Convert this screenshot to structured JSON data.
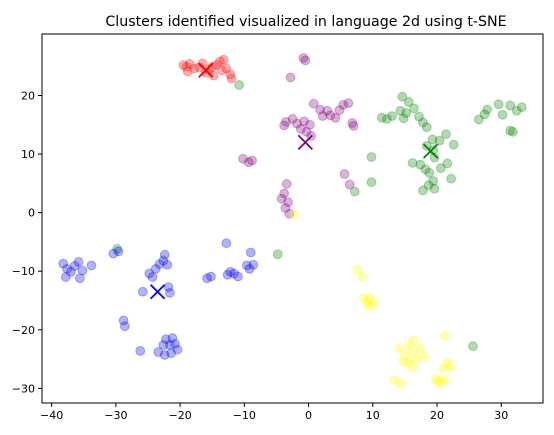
{
  "chart_data": {
    "type": "scatter",
    "title": "Clusters identified visualized in language 2d using t-SNE",
    "xlabel": "",
    "ylabel": "",
    "xlim": [
      -41.5,
      36.5
    ],
    "ylim": [
      -32.5,
      30.5
    ],
    "xticks": [
      -40,
      -30,
      -20,
      -10,
      0,
      10,
      20,
      30
    ],
    "yticks": [
      -30,
      -20,
      -10,
      0,
      10,
      20
    ],
    "grid": false,
    "legend": "none",
    "point_alpha": 0.3,
    "series": [
      {
        "color": "#ff0000",
        "points": [
          [
            -19.5,
            25.2
          ],
          [
            -18.5,
            25.4
          ],
          [
            -17.8,
            24.6
          ],
          [
            -17.0,
            24.8
          ],
          [
            -16.5,
            25.5
          ],
          [
            -15.5,
            24.4
          ],
          [
            -15.0,
            24.9
          ],
          [
            -14.3,
            25.2
          ],
          [
            -13.8,
            25.8
          ],
          [
            -13.2,
            26.1
          ],
          [
            -12.8,
            24.6
          ],
          [
            -12.2,
            23.6
          ],
          [
            -12.0,
            22.9
          ],
          [
            -18.8,
            24.1
          ],
          [
            -16.0,
            23.9
          ],
          [
            -14.8,
            23.4
          ],
          [
            -13.5,
            24.3
          ],
          [
            -19.0,
            24.9
          ]
        ],
        "centroid": [
          -16.0,
          24.3
        ]
      },
      {
        "color": "#800080",
        "points": [
          [
            -0.8,
            26.4
          ],
          [
            -2.8,
            23.1
          ],
          [
            -3.5,
            15.5
          ],
          [
            -2.5,
            16.0
          ],
          [
            -1.8,
            15.2
          ],
          [
            -0.7,
            15.6
          ],
          [
            0.2,
            15.0
          ],
          [
            0.8,
            18.6
          ],
          [
            1.8,
            17.6
          ],
          [
            2.2,
            16.5
          ],
          [
            2.9,
            17.4
          ],
          [
            3.4,
            16.6
          ],
          [
            4.2,
            16.2
          ],
          [
            4.8,
            17.5
          ],
          [
            5.4,
            18.4
          ],
          [
            6.2,
            18.7
          ],
          [
            6.8,
            15.3
          ],
          [
            7.0,
            14.8
          ],
          [
            -3.8,
            14.9
          ],
          [
            -1.2,
            14.3
          ],
          [
            -0.3,
            13.8
          ],
          [
            0.4,
            13.1
          ],
          [
            -10.2,
            9.2
          ],
          [
            -9.3,
            8.6
          ],
          [
            -8.8,
            8.9
          ],
          [
            -3.4,
            4.9
          ],
          [
            -3.8,
            3.3
          ],
          [
            -4.2,
            2.4
          ],
          [
            -3.2,
            1.8
          ],
          [
            -3.6,
            0.8
          ],
          [
            -3.0,
            -0.2
          ],
          [
            5.6,
            6.6
          ],
          [
            6.4,
            4.8
          ],
          [
            -0.5,
            26.0
          ]
        ],
        "centroid": [
          -0.5,
          12.0
        ]
      },
      {
        "color": "#008000",
        "points": [
          [
            -10.8,
            21.8
          ],
          [
            11.4,
            16.2
          ],
          [
            12.2,
            16.0
          ],
          [
            13.0,
            16.5
          ],
          [
            14.3,
            17.4
          ],
          [
            14.8,
            16.1
          ],
          [
            15.2,
            17.0
          ],
          [
            14.6,
            19.8
          ],
          [
            15.6,
            18.9
          ],
          [
            16.4,
            17.8
          ],
          [
            17.2,
            16.4
          ],
          [
            17.8,
            15.4
          ],
          [
            18.4,
            14.6
          ],
          [
            19.3,
            12.5
          ],
          [
            20.4,
            12.3
          ],
          [
            21.4,
            13.4
          ],
          [
            22.6,
            11.6
          ],
          [
            18.4,
            11.4
          ],
          [
            19.4,
            10.7
          ],
          [
            19.6,
            9.4
          ],
          [
            16.2,
            8.5
          ],
          [
            17.4,
            8.2
          ],
          [
            18.2,
            7.4
          ],
          [
            18.8,
            6.8
          ],
          [
            20.6,
            7.6
          ],
          [
            21.6,
            8.4
          ],
          [
            19.4,
            5.4
          ],
          [
            18.7,
            4.7
          ],
          [
            17.8,
            3.8
          ],
          [
            19.6,
            4.1
          ],
          [
            22.2,
            5.8
          ],
          [
            9.8,
            9.5
          ],
          [
            9.8,
            5.2
          ],
          [
            7.2,
            3.6
          ],
          [
            26.5,
            15.9
          ],
          [
            27.4,
            16.8
          ],
          [
            27.8,
            17.6
          ],
          [
            29.6,
            18.5
          ],
          [
            31.4,
            18.3
          ],
          [
            32.4,
            17.4
          ],
          [
            33.2,
            18.0
          ],
          [
            30.2,
            16.7
          ],
          [
            31.4,
            14.0
          ],
          [
            31.8,
            13.8
          ],
          [
            -4.8,
            -7.1
          ],
          [
            -29.8,
            -6.2
          ],
          [
            25.6,
            -22.8
          ]
        ],
        "centroid": [
          19.0,
          10.5
        ]
      },
      {
        "color": "#0000ff",
        "points": [
          [
            -38.2,
            -8.7
          ],
          [
            -37.6,
            -9.6
          ],
          [
            -37.0,
            -10.1
          ],
          [
            -36.4,
            -9.1
          ],
          [
            -35.8,
            -8.4
          ],
          [
            -35.2,
            -9.9
          ],
          [
            -37.8,
            -11.0
          ],
          [
            -35.6,
            -11.2
          ],
          [
            -33.8,
            -9.0
          ],
          [
            -30.4,
            -7.0
          ],
          [
            -29.6,
            -6.6
          ],
          [
            -28.8,
            -18.4
          ],
          [
            -28.6,
            -19.4
          ],
          [
            -26.2,
            -23.6
          ],
          [
            -25.8,
            -13.5
          ],
          [
            -24.8,
            -10.4
          ],
          [
            -24.3,
            -11.0
          ],
          [
            -23.8,
            -9.6
          ],
          [
            -23.2,
            -8.8
          ],
          [
            -22.6,
            -8.2
          ],
          [
            -22.0,
            -8.9
          ],
          [
            -22.4,
            -7.2
          ],
          [
            -21.8,
            -12.7
          ],
          [
            -21.6,
            -13.7
          ],
          [
            -20.4,
            -23.4
          ],
          [
            -20.8,
            -22.4
          ],
          [
            -21.2,
            -21.4
          ],
          [
            -22.2,
            -21.6
          ],
          [
            -22.6,
            -22.6
          ],
          [
            -23.4,
            -23.8
          ],
          [
            -22.4,
            -24.3
          ],
          [
            -21.4,
            -24.0
          ],
          [
            -21.6,
            -22.6
          ],
          [
            -15.8,
            -11.2
          ],
          [
            -15.2,
            -10.9
          ],
          [
            -12.6,
            -10.6
          ],
          [
            -12.2,
            -10.1
          ],
          [
            -11.6,
            -10.4
          ],
          [
            -11.0,
            -10.9
          ],
          [
            -9.6,
            -9.0
          ],
          [
            -9.2,
            -9.6
          ],
          [
            -8.6,
            -8.9
          ],
          [
            -9.0,
            -6.8
          ],
          [
            -12.8,
            -5.2
          ]
        ],
        "centroid": [
          -23.5,
          -13.5
        ]
      },
      {
        "color": "#ffff00",
        "points": [
          [
            -2.2,
            -0.3
          ],
          [
            7.6,
            -9.7
          ],
          [
            8.4,
            -11.0
          ],
          [
            8.6,
            -14.6
          ],
          [
            9.2,
            -15.2
          ],
          [
            9.6,
            -14.6
          ],
          [
            10.2,
            -15.4
          ],
          [
            9.4,
            -16.0
          ],
          [
            14.2,
            -23.2
          ],
          [
            15.0,
            -24.4
          ],
          [
            15.6,
            -22.6
          ],
          [
            16.2,
            -23.8
          ],
          [
            16.8,
            -25.0
          ],
          [
            17.4,
            -23.2
          ],
          [
            16.4,
            -21.8
          ],
          [
            15.6,
            -25.6
          ],
          [
            18.0,
            -24.6
          ],
          [
            16.2,
            -26.4
          ],
          [
            14.8,
            -25.4
          ],
          [
            21.2,
            -21.0
          ],
          [
            21.6,
            -25.6
          ],
          [
            21.0,
            -26.6
          ],
          [
            22.2,
            -26.3
          ],
          [
            13.4,
            -28.6
          ],
          [
            14.4,
            -29.2
          ],
          [
            19.8,
            -28.4
          ],
          [
            20.6,
            -29.0
          ],
          [
            21.2,
            -28.6
          ],
          [
            20.2,
            -28.8
          ]
        ],
        "centroid": null
      }
    ]
  }
}
